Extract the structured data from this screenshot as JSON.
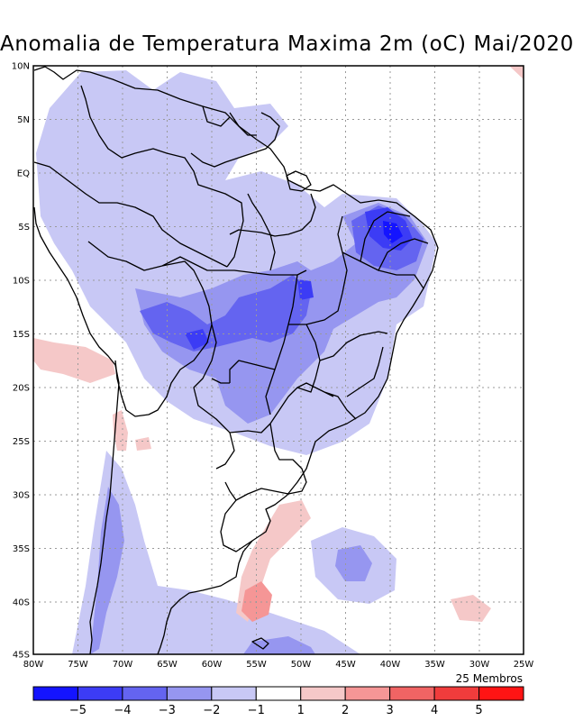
{
  "title": "Anomalia de Temperatura Maxima 2m (oC) Mai/2020",
  "subtitle": "25 Membros",
  "latitude_labels": [
    "10N",
    "5N",
    "EQ",
    "5S",
    "10S",
    "15S",
    "20S",
    "25S",
    "30S",
    "35S",
    "40S",
    "45S"
  ],
  "longitude_labels": [
    "80W",
    "75W",
    "70W",
    "65W",
    "60W",
    "55W",
    "50W",
    "45W",
    "40W",
    "35W",
    "30W",
    "25W"
  ],
  "legend": {
    "tick_labels": [
      "-5",
      "-4",
      "-3",
      "-2",
      "-1",
      "1",
      "2",
      "3",
      "4",
      "5"
    ],
    "colors": [
      "#1414ff",
      "#3c3cf5",
      "#6464f0",
      "#9696f0",
      "#c8c8f5",
      "#ffffff",
      "#f5c8c8",
      "#f59696",
      "#f06464",
      "#f03c3c",
      "#ff1414"
    ]
  },
  "colors": {
    "frame": "#000000",
    "grid": "#9a9a9a"
  }
}
